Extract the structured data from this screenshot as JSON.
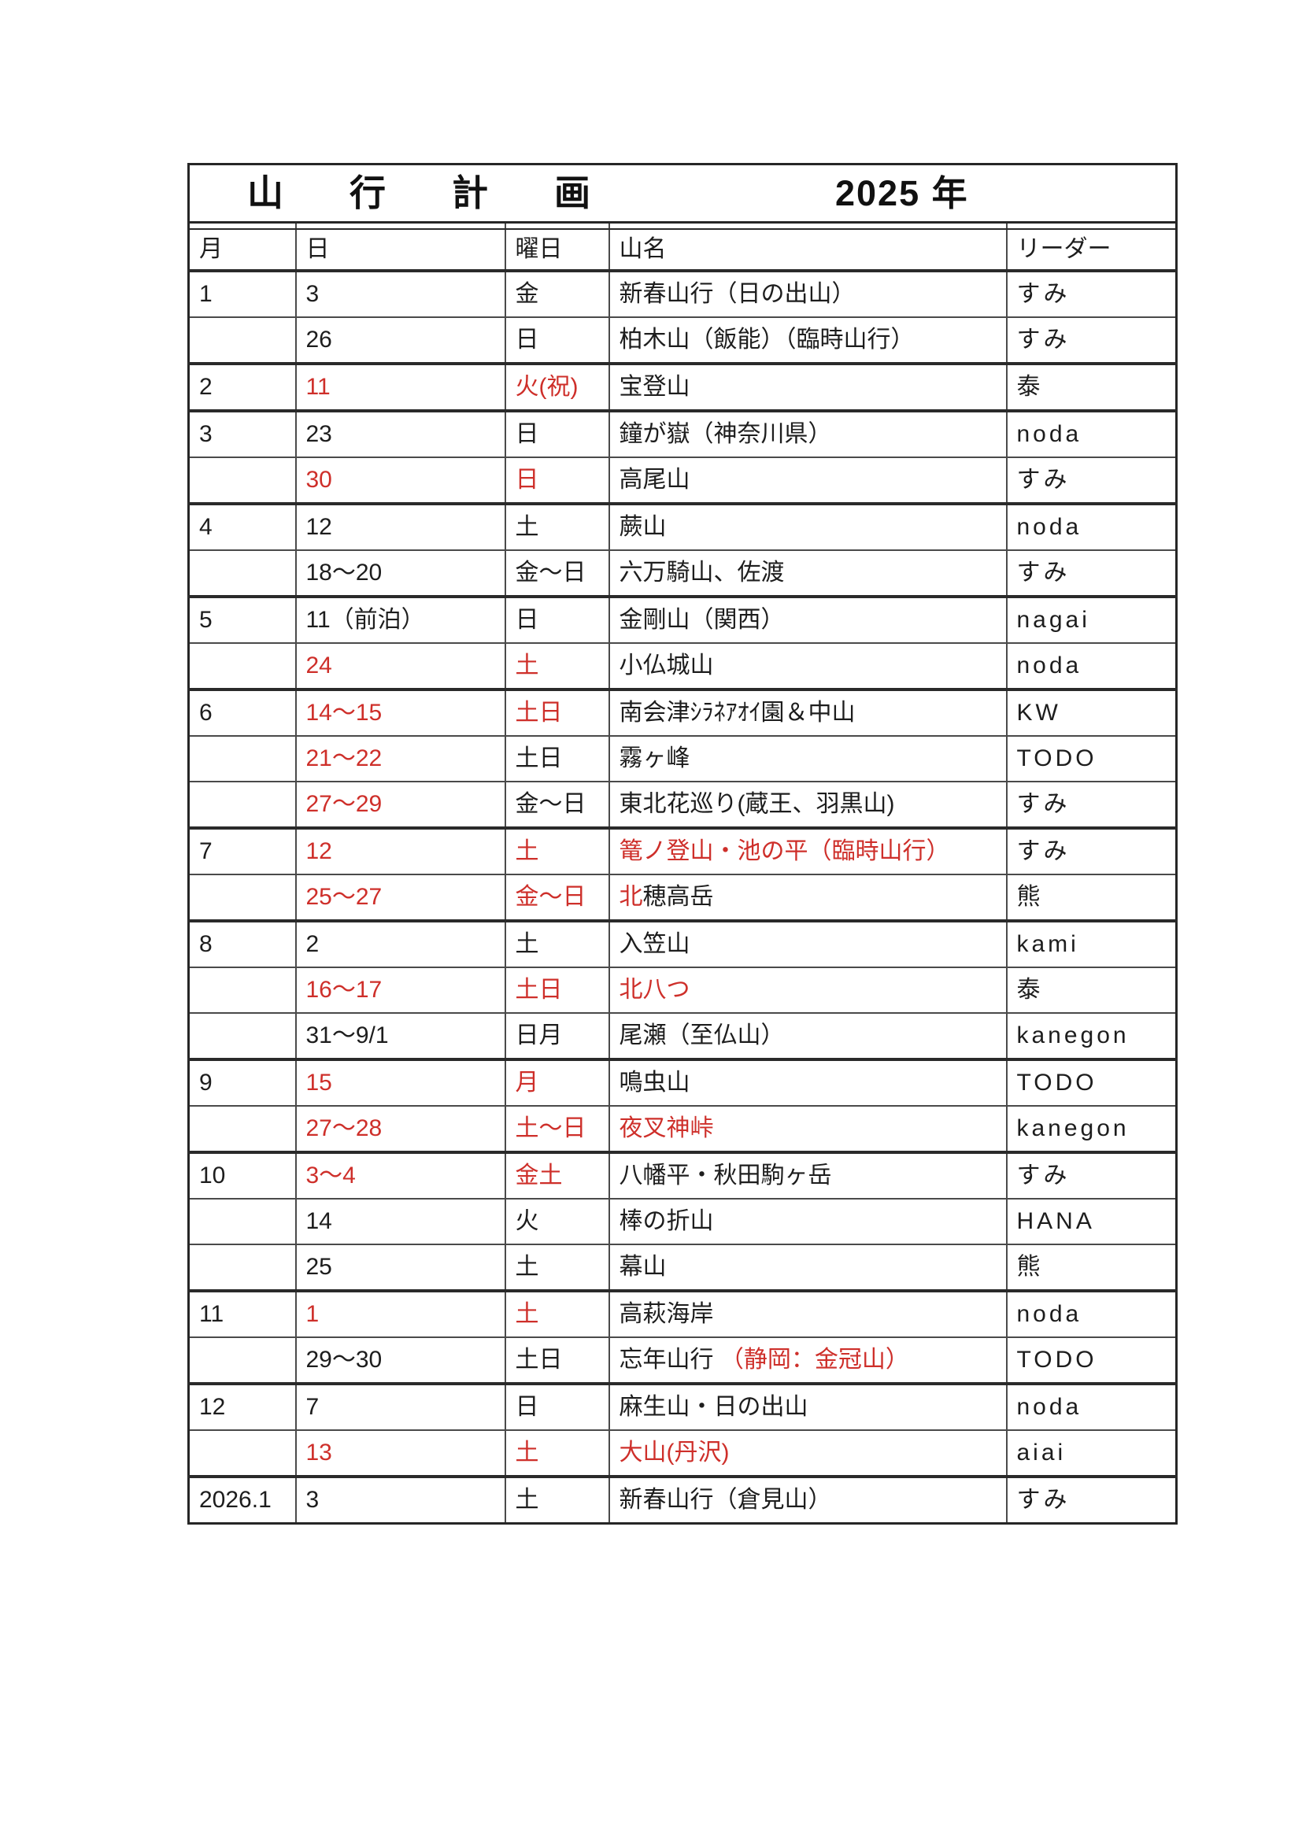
{
  "document": {
    "title": "山行計画",
    "year_label": "2025 年"
  },
  "table": {
    "red_color": "#CE2F2A",
    "columns": [
      {
        "key": "month",
        "label": "月"
      },
      {
        "key": "day",
        "label": "日"
      },
      {
        "key": "weekday",
        "label": "曜日"
      },
      {
        "key": "mountain",
        "label": "山名"
      },
      {
        "key": "leader",
        "label": "リーダー"
      }
    ],
    "rows": [
      {
        "month": "1",
        "month_start": true,
        "day": "3",
        "day_red": false,
        "weekday": "金",
        "weekday_red": false,
        "name_segments": [
          {
            "text": "新春山行（日の出山）",
            "red": false
          }
        ],
        "leader": "すみ"
      },
      {
        "month": "",
        "month_start": false,
        "day": "26",
        "day_red": false,
        "weekday": "日",
        "weekday_red": false,
        "name_segments": [
          {
            "text": "柏木山（飯能）（臨時山行）",
            "red": false
          }
        ],
        "leader": "すみ"
      },
      {
        "month": "2",
        "month_start": true,
        "day": "11",
        "day_red": true,
        "weekday": "火(祝)",
        "weekday_red": true,
        "name_segments": [
          {
            "text": "宝登山",
            "red": false
          }
        ],
        "leader": "泰"
      },
      {
        "month": "3",
        "month_start": true,
        "day": "23",
        "day_red": false,
        "weekday": "日",
        "weekday_red": false,
        "name_segments": [
          {
            "text": "鐘が嶽（神奈川県）",
            "red": false
          }
        ],
        "leader": "noda"
      },
      {
        "month": "",
        "month_start": false,
        "day": "30",
        "day_red": true,
        "weekday": "日",
        "weekday_red": true,
        "name_segments": [
          {
            "text": "高尾山",
            "red": false
          }
        ],
        "leader": "すみ"
      },
      {
        "month": "4",
        "month_start": true,
        "day": "12",
        "day_red": false,
        "weekday": "土",
        "weekday_red": false,
        "name_segments": [
          {
            "text": "蕨山",
            "red": false
          }
        ],
        "leader": "noda"
      },
      {
        "month": "",
        "month_start": false,
        "day": "18〜20",
        "day_red": false,
        "weekday": "金〜日",
        "weekday_red": false,
        "name_segments": [
          {
            "text": "六万騎山、佐渡",
            "red": false
          }
        ],
        "leader": "すみ"
      },
      {
        "month": "5",
        "month_start": true,
        "day": "11（前泊）",
        "day_red": false,
        "weekday": "日",
        "weekday_red": false,
        "name_segments": [
          {
            "text": "金剛山（関西）",
            "red": false
          }
        ],
        "leader": "nagai"
      },
      {
        "month": "",
        "month_start": false,
        "day": "24",
        "day_red": true,
        "weekday": "土",
        "weekday_red": true,
        "name_segments": [
          {
            "text": "小仏城山",
            "red": false
          }
        ],
        "leader": "noda"
      },
      {
        "month": "6",
        "month_start": true,
        "day": "14〜15",
        "day_red": true,
        "weekday": "土日",
        "weekday_red": true,
        "name_segments": [
          {
            "text": "南会津ｼﾗﾈｱｵｲ園＆中山",
            "red": false
          }
        ],
        "leader": "KW"
      },
      {
        "month": "",
        "month_start": false,
        "day": "21〜22",
        "day_red": true,
        "weekday": "土日",
        "weekday_red": false,
        "name_segments": [
          {
            "text": "霧ヶ峰",
            "red": false
          }
        ],
        "leader": "TODO"
      },
      {
        "month": "",
        "month_start": false,
        "day": "27〜29",
        "day_red": true,
        "weekday": "金〜日",
        "weekday_red": false,
        "name_segments": [
          {
            "text": "東北花巡り(蔵王、羽黒山)",
            "red": false
          }
        ],
        "leader": "すみ"
      },
      {
        "month": "7",
        "month_start": true,
        "day": "12",
        "day_red": true,
        "weekday": "土",
        "weekday_red": true,
        "name_segments": [
          {
            "text": "篭ノ登山・池の平（臨時山行）",
            "red": true
          }
        ],
        "leader": "すみ"
      },
      {
        "month": "",
        "month_start": false,
        "day": "25〜27",
        "day_red": true,
        "weekday": "金〜日",
        "weekday_red": true,
        "name_segments": [
          {
            "text": "北",
            "red": true
          },
          {
            "text": "穂高岳",
            "red": false
          }
        ],
        "leader": "熊"
      },
      {
        "month": "8",
        "month_start": true,
        "day": "2",
        "day_red": false,
        "weekday": "土",
        "weekday_red": false,
        "name_segments": [
          {
            "text": "入笠山",
            "red": false
          }
        ],
        "leader": "kami"
      },
      {
        "month": "",
        "month_start": false,
        "day": "16〜17",
        "day_red": true,
        "weekday": "土日",
        "weekday_red": true,
        "name_segments": [
          {
            "text": "北八つ",
            "red": true
          }
        ],
        "leader": "泰"
      },
      {
        "month": "",
        "month_start": false,
        "day": "31〜9/1",
        "day_red": false,
        "weekday": "日月",
        "weekday_red": false,
        "name_segments": [
          {
            "text": "尾瀬（至仏山）",
            "red": false
          }
        ],
        "leader": "kanegon"
      },
      {
        "month": "9",
        "month_start": true,
        "day": "15",
        "day_red": true,
        "weekday": "月",
        "weekday_red": true,
        "name_segments": [
          {
            "text": "鳴虫山",
            "red": false
          }
        ],
        "leader": "TODO"
      },
      {
        "month": "",
        "month_start": false,
        "day": "27〜28",
        "day_red": true,
        "weekday": "土〜日",
        "weekday_red": true,
        "name_segments": [
          {
            "text": "夜叉神峠",
            "red": true
          }
        ],
        "leader": "kanegon"
      },
      {
        "month": "10",
        "month_start": true,
        "day": "3〜4",
        "day_red": true,
        "weekday": "金土",
        "weekday_red": true,
        "name_segments": [
          {
            "text": "八幡平・秋田駒ヶ岳",
            "red": false
          }
        ],
        "leader": "すみ"
      },
      {
        "month": "",
        "month_start": false,
        "day": "14",
        "day_red": false,
        "weekday": "火",
        "weekday_red": false,
        "name_segments": [
          {
            "text": "棒の折山",
            "red": false
          }
        ],
        "leader": "HANA"
      },
      {
        "month": "",
        "month_start": false,
        "day": "25",
        "day_red": false,
        "weekday": "土",
        "weekday_red": false,
        "name_segments": [
          {
            "text": "幕山",
            "red": false
          }
        ],
        "leader": "熊"
      },
      {
        "month": "11",
        "month_start": true,
        "day": "1",
        "day_red": true,
        "weekday": "土",
        "weekday_red": true,
        "name_segments": [
          {
            "text": "高萩海岸",
            "red": false
          }
        ],
        "leader": "noda"
      },
      {
        "month": "",
        "month_start": false,
        "day": "29〜30",
        "day_red": false,
        "weekday": "土日",
        "weekday_red": false,
        "name_segments": [
          {
            "text": "忘年山行 ",
            "red": false
          },
          {
            "text": "（静岡：金冠山）",
            "red": true
          }
        ],
        "leader": "TODO"
      },
      {
        "month": "12",
        "month_start": true,
        "day": "7",
        "day_red": false,
        "weekday": "日",
        "weekday_red": false,
        "name_segments": [
          {
            "text": "麻生山・日の出山",
            "red": false
          }
        ],
        "leader": "noda"
      },
      {
        "month": "",
        "month_start": false,
        "day": "13",
        "day_red": true,
        "weekday": "土",
        "weekday_red": true,
        "name_segments": [
          {
            "text": "大山(丹沢)",
            "red": true
          }
        ],
        "leader": "aiai"
      },
      {
        "month": "2026.1",
        "month_start": true,
        "day": "3",
        "day_red": false,
        "weekday": "土",
        "weekday_red": false,
        "name_segments": [
          {
            "text": "新春山行（倉見山）",
            "red": false
          }
        ],
        "leader": "すみ"
      }
    ]
  }
}
